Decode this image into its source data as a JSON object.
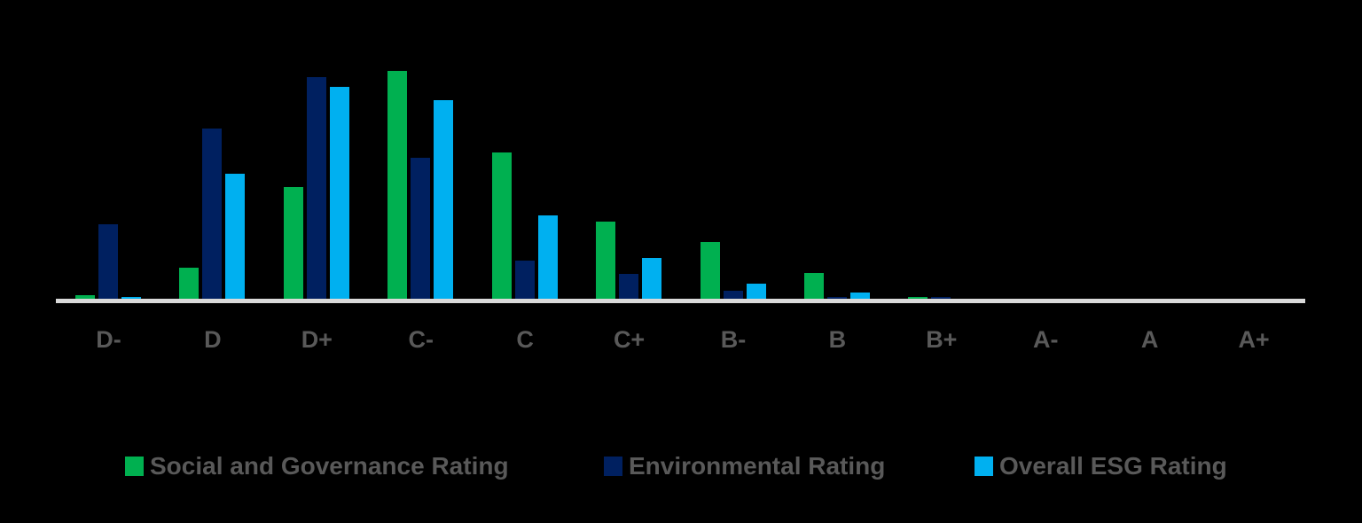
{
  "chart_data": {
    "type": "bar",
    "title": "",
    "xlabel": "",
    "ylabel": "",
    "ylim": [
      0,
      260
    ],
    "grid": false,
    "legend_position": "bottom",
    "categories": [
      "D-",
      "D",
      "D+",
      "C-",
      "C",
      "C+",
      "B-",
      "B",
      "B+",
      "A-",
      "A",
      "A+"
    ],
    "series": [
      {
        "name": "Social and Governance Rating",
        "color": "#00B050",
        "values": [
          4,
          35,
          126,
          257,
          165,
          87,
          64,
          29,
          2,
          0,
          0,
          0
        ]
      },
      {
        "name": "Environmental Rating",
        "color": "#002060",
        "values": [
          84,
          192,
          250,
          159,
          43,
          28,
          9,
          2,
          2,
          0,
          0,
          0
        ]
      },
      {
        "name": "Overall ESG Rating",
        "color": "#00B0F0",
        "values": [
          2,
          141,
          239,
          224,
          94,
          46,
          17,
          7,
          0,
          0,
          0,
          0
        ]
      }
    ],
    "value_note": "No y-axis shown; values are relative bar heights read from pixels"
  },
  "colors": {
    "background": "#000000",
    "axis_line": "#D9D9D9",
    "label_text": "#595959"
  },
  "legend": {
    "items": [
      {
        "label": "Social and Governance Rating",
        "color": "#00B050"
      },
      {
        "label": "Environmental Rating",
        "color": "#002060"
      },
      {
        "label": "Overall ESG Rating",
        "color": "#00B0F0"
      }
    ]
  }
}
